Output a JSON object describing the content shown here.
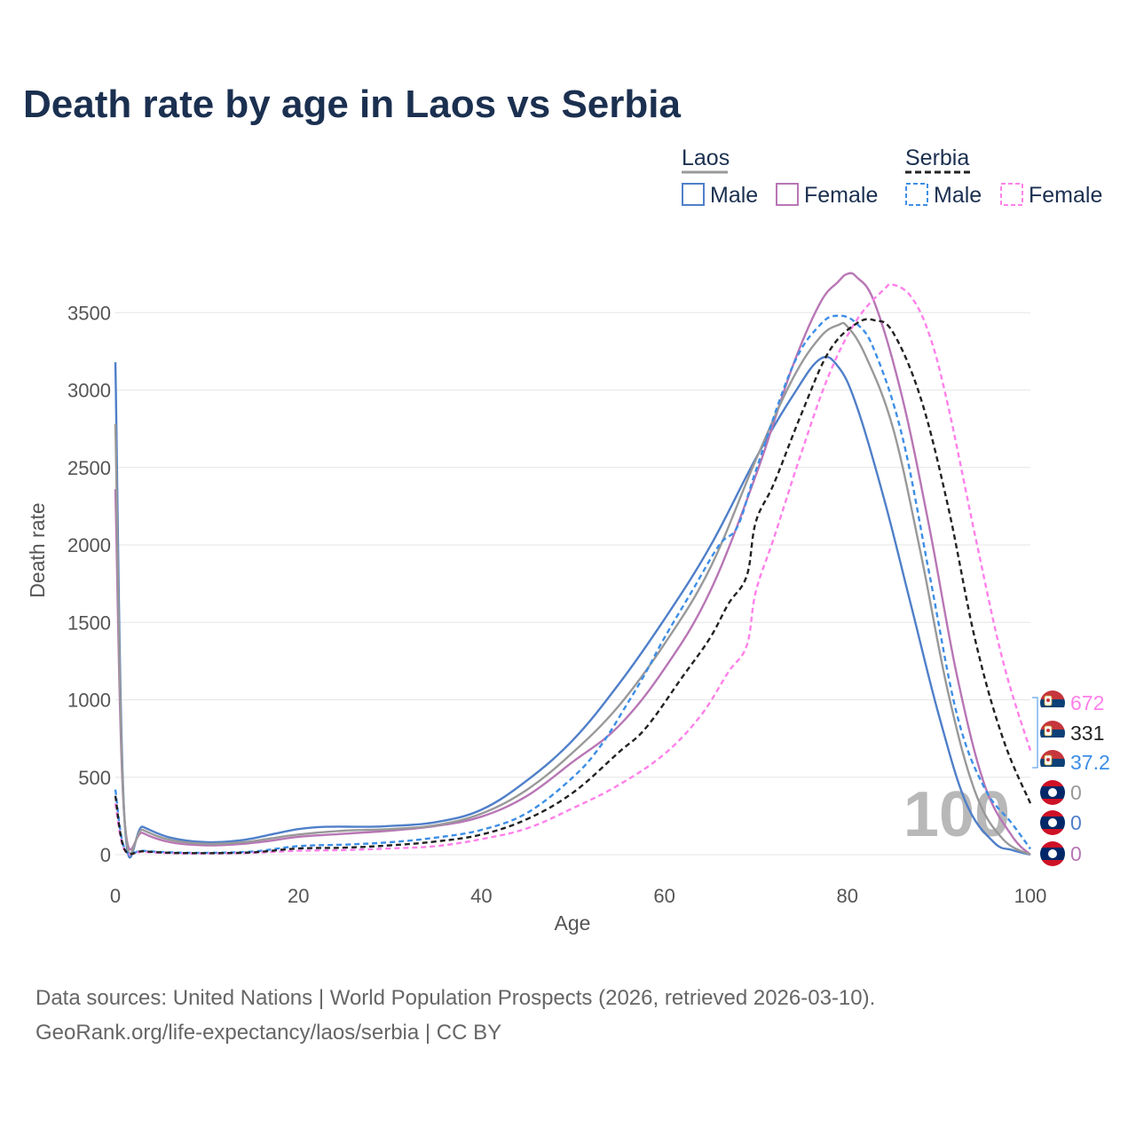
{
  "colors": {
    "title": "#1b3050",
    "laos_male": "#4f7fc9",
    "laos_female": "#b876b5",
    "laos_total": "#999999",
    "serbia_male": "#3d8ee6",
    "serbia_female": "#ff80ea",
    "serbia_total": "#222222",
    "grid": "#e6e6e6",
    "serbia_red": "#c6363c",
    "serbia_blue": "#0c4076",
    "laos_red": "#ce1126",
    "laos_blue": "#002868"
  },
  "chart_data": {
    "type": "line",
    "title": "Death rate by age in Laos vs Serbia",
    "xlabel": "Age",
    "ylabel": "Death rate",
    "xlim": [
      0,
      100
    ],
    "ylim": [
      0,
      3800
    ],
    "xticks": [
      0,
      20,
      40,
      60,
      80,
      100
    ],
    "yticks": [
      0,
      500,
      1000,
      1500,
      2000,
      2500,
      3000,
      3500
    ],
    "watermark": "100",
    "legend": {
      "groups": [
        {
          "name": "Laos",
          "items": [
            "Male",
            "Female"
          ]
        },
        {
          "name": "Serbia",
          "items": [
            "Male",
            "Female"
          ]
        }
      ]
    },
    "end_labels": [
      {
        "series": "Serbia Female",
        "country": "serbia",
        "text": "672",
        "color": "#ff80ea"
      },
      {
        "series": "Serbia Total",
        "country": "serbia",
        "text": "331",
        "color": "#222222"
      },
      {
        "series": "Serbia Male",
        "country": "serbia",
        "text": "37.2",
        "color": "#3d8ee6"
      },
      {
        "series": "Laos Total",
        "country": "laos",
        "text": "0",
        "color": "#999999"
      },
      {
        "series": "Laos Male",
        "country": "laos",
        "text": "0",
        "color": "#4f7fc9"
      },
      {
        "series": "Laos Female",
        "country": "laos",
        "text": "0",
        "color": "#b876b5"
      }
    ],
    "series": [
      {
        "name": "Laos Male",
        "color": "#4f7fc9",
        "dashed": false,
        "points": [
          [
            0,
            3180
          ],
          [
            1,
            230
          ],
          [
            3,
            180
          ],
          [
            6,
            110
          ],
          [
            10,
            80
          ],
          [
            14,
            95
          ],
          [
            17,
            130
          ],
          [
            20,
            165
          ],
          [
            23,
            180
          ],
          [
            27,
            180
          ],
          [
            30,
            185
          ],
          [
            35,
            210
          ],
          [
            40,
            290
          ],
          [
            45,
            480
          ],
          [
            50,
            740
          ],
          [
            55,
            1100
          ],
          [
            60,
            1520
          ],
          [
            65,
            1990
          ],
          [
            70,
            2560
          ],
          [
            74,
            2960
          ],
          [
            77,
            3200
          ],
          [
            79,
            3150
          ],
          [
            81,
            2900
          ],
          [
            84,
            2300
          ],
          [
            87,
            1600
          ],
          [
            90,
            900
          ],
          [
            93,
            330
          ],
          [
            96,
            80
          ],
          [
            98,
            30
          ],
          [
            100,
            0
          ]
        ]
      },
      {
        "name": "Laos Female",
        "color": "#b876b5",
        "dashed": false,
        "points": [
          [
            0,
            2360
          ],
          [
            1,
            230
          ],
          [
            3,
            140
          ],
          [
            6,
            80
          ],
          [
            10,
            60
          ],
          [
            14,
            70
          ],
          [
            17,
            90
          ],
          [
            20,
            115
          ],
          [
            25,
            135
          ],
          [
            30,
            155
          ],
          [
            35,
            185
          ],
          [
            40,
            245
          ],
          [
            45,
            380
          ],
          [
            50,
            600
          ],
          [
            55,
            830
          ],
          [
            60,
            1200
          ],
          [
            65,
            1700
          ],
          [
            70,
            2450
          ],
          [
            74,
            3150
          ],
          [
            77,
            3560
          ],
          [
            79,
            3700
          ],
          [
            80,
            3750
          ],
          [
            81,
            3730
          ],
          [
            83,
            3560
          ],
          [
            86,
            2950
          ],
          [
            89,
            2100
          ],
          [
            92,
            1150
          ],
          [
            95,
            450
          ],
          [
            98,
            120
          ],
          [
            100,
            0
          ]
        ]
      },
      {
        "name": "Laos Total",
        "color": "#999999",
        "dashed": false,
        "points": [
          [
            0,
            2780
          ],
          [
            1,
            230
          ],
          [
            3,
            160
          ],
          [
            6,
            95
          ],
          [
            10,
            70
          ],
          [
            14,
            80
          ],
          [
            17,
            105
          ],
          [
            20,
            130
          ],
          [
            25,
            155
          ],
          [
            30,
            165
          ],
          [
            35,
            190
          ],
          [
            40,
            265
          ],
          [
            45,
            420
          ],
          [
            50,
            660
          ],
          [
            55,
            960
          ],
          [
            60,
            1360
          ],
          [
            65,
            1850
          ],
          [
            70,
            2550
          ],
          [
            74,
            3070
          ],
          [
            77,
            3340
          ],
          [
            79,
            3420
          ],
          [
            80,
            3410
          ],
          [
            82,
            3220
          ],
          [
            85,
            2750
          ],
          [
            88,
            1950
          ],
          [
            91,
            1050
          ],
          [
            94,
            400
          ],
          [
            97,
            100
          ],
          [
            100,
            0
          ]
        ]
      },
      {
        "name": "Serbia Male",
        "color": "#3d8ee6",
        "dashed": true,
        "points": [
          [
            0,
            420
          ],
          [
            1,
            40
          ],
          [
            3,
            25
          ],
          [
            6,
            15
          ],
          [
            10,
            12
          ],
          [
            15,
            20
          ],
          [
            20,
            55
          ],
          [
            25,
            65
          ],
          [
            30,
            80
          ],
          [
            35,
            110
          ],
          [
            40,
            160
          ],
          [
            45,
            270
          ],
          [
            50,
            500
          ],
          [
            53,
            700
          ],
          [
            56,
            980
          ],
          [
            58,
            1180
          ],
          [
            60,
            1400
          ],
          [
            63,
            1700
          ],
          [
            66,
            2000
          ],
          [
            68,
            2120
          ],
          [
            70,
            2480
          ],
          [
            74,
            3150
          ],
          [
            77,
            3420
          ],
          [
            79,
            3480
          ],
          [
            81,
            3430
          ],
          [
            83,
            3250
          ],
          [
            86,
            2700
          ],
          [
            89,
            1800
          ],
          [
            92,
            900
          ],
          [
            95,
            430
          ],
          [
            98,
            200
          ],
          [
            100,
            37
          ]
        ]
      },
      {
        "name": "Serbia Female",
        "color": "#ff80ea",
        "dashed": true,
        "points": [
          [
            0,
            330
          ],
          [
            1,
            30
          ],
          [
            3,
            18
          ],
          [
            6,
            10
          ],
          [
            10,
            8
          ],
          [
            15,
            12
          ],
          [
            20,
            25
          ],
          [
            25,
            30
          ],
          [
            30,
            40
          ],
          [
            35,
            55
          ],
          [
            40,
            100
          ],
          [
            45,
            170
          ],
          [
            50,
            300
          ],
          [
            55,
            450
          ],
          [
            60,
            650
          ],
          [
            64,
            900
          ],
          [
            67,
            1180
          ],
          [
            69,
            1350
          ],
          [
            70,
            1700
          ],
          [
            72,
            2050
          ],
          [
            75,
            2600
          ],
          [
            78,
            3100
          ],
          [
            81,
            3450
          ],
          [
            84,
            3650
          ],
          [
            85,
            3680
          ],
          [
            87,
            3600
          ],
          [
            89,
            3350
          ],
          [
            91,
            2900
          ],
          [
            94,
            2050
          ],
          [
            97,
            1250
          ],
          [
            100,
            672
          ]
        ]
      },
      {
        "name": "Serbia Total",
        "color": "#222222",
        "dashed": true,
        "points": [
          [
            0,
            380
          ],
          [
            1,
            35
          ],
          [
            3,
            22
          ],
          [
            6,
            12
          ],
          [
            10,
            10
          ],
          [
            15,
            15
          ],
          [
            20,
            40
          ],
          [
            25,
            45
          ],
          [
            30,
            60
          ],
          [
            35,
            85
          ],
          [
            40,
            130
          ],
          [
            45,
            230
          ],
          [
            50,
            400
          ],
          [
            55,
            660
          ],
          [
            58,
            820
          ],
          [
            62,
            1150
          ],
          [
            65,
            1400
          ],
          [
            67,
            1620
          ],
          [
            69,
            1800
          ],
          [
            70,
            2150
          ],
          [
            72,
            2400
          ],
          [
            75,
            2850
          ],
          [
            78,
            3250
          ],
          [
            81,
            3430
          ],
          [
            83,
            3450
          ],
          [
            85,
            3370
          ],
          [
            88,
            2950
          ],
          [
            91,
            2250
          ],
          [
            94,
            1380
          ],
          [
            97,
            750
          ],
          [
            100,
            331
          ]
        ]
      }
    ]
  },
  "source_line1": "Data sources: United Nations | World Population Prospects (2026, retrieved 2026-03-10).",
  "source_line2": "GeoRank.org/life-expectancy/laos/serbia | CC BY"
}
